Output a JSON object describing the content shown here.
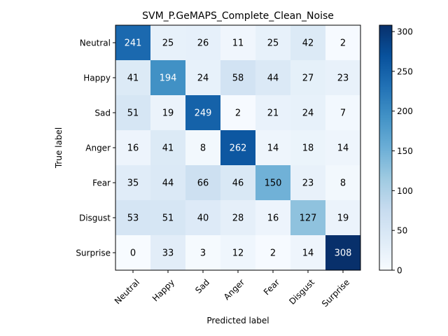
{
  "chart_data": {
    "type": "heatmap",
    "title": "SVM_P.GeMAPS_Complete_Clean_Noise",
    "xlabel": "Predicted label",
    "ylabel": "True label",
    "x_categories": [
      "Neutral",
      "Happy",
      "Sad",
      "Anger",
      "Fear",
      "Disgust",
      "Surprise"
    ],
    "y_categories": [
      "Neutral",
      "Happy",
      "Sad",
      "Anger",
      "Fear",
      "Disgust",
      "Surprise"
    ],
    "values": [
      [
        241,
        25,
        26,
        11,
        25,
        42,
        2
      ],
      [
        41,
        194,
        24,
        58,
        44,
        27,
        23
      ],
      [
        51,
        19,
        249,
        2,
        21,
        24,
        7
      ],
      [
        16,
        41,
        8,
        262,
        14,
        18,
        14
      ],
      [
        35,
        44,
        66,
        46,
        150,
        23,
        8
      ],
      [
        53,
        51,
        40,
        28,
        16,
        127,
        19
      ],
      [
        0,
        33,
        3,
        12,
        2,
        14,
        308
      ]
    ],
    "colormap": "Blues",
    "colorbar": {
      "min": 0,
      "max": 308,
      "ticks": [
        0,
        50,
        100,
        150,
        200,
        250,
        300
      ]
    },
    "grid": false
  }
}
